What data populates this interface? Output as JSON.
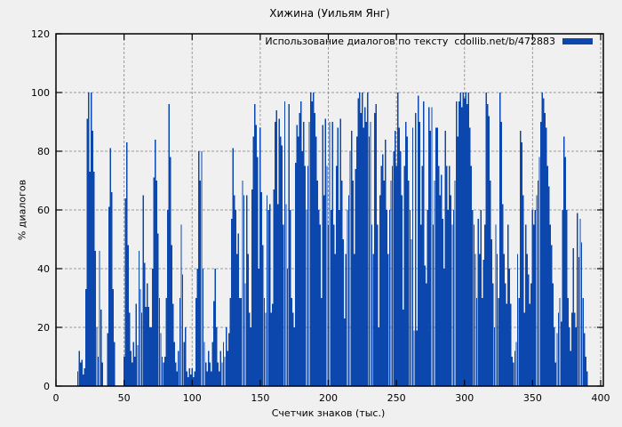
{
  "title": "Хижина (Уильям Янг)",
  "axes": {
    "y_label": "% диалогов",
    "x_label": "Счетчик знаков (тыс.)"
  },
  "legend": {
    "label": "Использование диалогов по тексту  coollib.net/b/472883",
    "swatch_color": "#0b47ad"
  },
  "colors": {
    "background": "#f0f0f0",
    "bar": "#0b47ad",
    "grid": "#9a9a9a",
    "border": "#000000",
    "text": "#000000"
  },
  "chart_data": {
    "type": "bar",
    "title": "Хижина (Уильям Янг)",
    "xlabel": "Счетчик знаков (тыс.)",
    "ylabel": "% диалогов",
    "xlim": [
      0,
      402
    ],
    "ylim": [
      0,
      120
    ],
    "x_ticks": [
      0,
      50,
      100,
      150,
      200,
      250,
      300,
      350,
      400
    ],
    "y_ticks": [
      0,
      20,
      40,
      60,
      80,
      100,
      120
    ],
    "grid": true,
    "legend_position": "top-right-inside",
    "series": [
      {
        "name": "Использование диалогов по тексту  coollib.net/b/472883",
        "x_start": 16,
        "x_step": 1,
        "values": [
          5,
          12,
          8,
          9,
          4,
          6,
          33,
          91,
          100,
          73,
          100,
          87,
          73,
          46,
          20,
          10,
          46,
          26,
          8,
          0,
          0,
          0,
          18,
          61,
          81,
          66,
          33,
          15,
          0,
          0,
          0,
          0,
          0,
          0,
          10,
          64,
          83,
          48,
          25,
          12,
          8,
          15,
          10,
          28,
          14,
          46,
          33,
          25,
          65,
          42,
          27,
          35,
          27,
          20,
          20,
          40,
          71,
          84,
          70,
          52,
          30,
          18,
          10,
          8,
          10,
          30,
          60,
          96,
          78,
          48,
          28,
          15,
          8,
          5,
          12,
          30,
          55,
          38,
          15,
          20,
          5,
          3,
          6,
          4,
          6,
          3,
          5,
          30,
          40,
          80,
          70,
          80,
          40,
          15,
          8,
          5,
          12,
          8,
          5,
          15,
          29,
          40,
          20,
          8,
          5,
          12,
          8,
          15,
          10,
          20,
          12,
          18,
          30,
          57,
          81,
          65,
          60,
          45,
          52,
          30,
          30,
          70,
          65,
          35,
          65,
          45,
          25,
          20,
          67,
          85,
          96,
          89,
          78,
          40,
          88,
          66,
          48,
          30,
          25,
          65,
          60,
          62,
          25,
          28,
          67,
          90,
          94,
          62,
          91,
          85,
          82,
          55,
          97,
          62,
          40,
          96,
          60,
          30,
          25,
          20,
          76,
          89,
          85,
          93,
          97,
          80,
          90,
          75,
          60,
          75,
          90,
          100,
          97,
          100,
          93,
          85,
          70,
          60,
          55,
          30,
          89,
          65,
          91,
          75,
          55,
          90,
          60,
          90,
          55,
          45,
          75,
          88,
          60,
          91,
          70,
          50,
          23,
          45,
          60,
          65,
          80,
          87,
          70,
          45,
          74,
          85,
          98,
          100,
          93,
          100,
          88,
          95,
          90,
          100,
          85,
          90,
          55,
          45,
          93,
          96,
          55,
          20,
          65,
          75,
          79,
          70,
          84,
          60,
          45,
          60,
          70,
          75,
          80,
          87,
          75,
          100,
          88,
          80,
          65,
          26,
          75,
          90,
          85,
          70,
          60,
          50,
          88,
          19,
          93,
          19,
          99,
          90,
          55,
          75,
          97,
          41,
          35,
          60,
          95,
          87,
          95,
          55,
          70,
          88,
          88,
          75,
          65,
          72,
          57,
          40,
          87,
          75,
          60,
          75,
          65,
          55,
          60,
          70,
          97,
          85,
          97,
          100,
          95,
          100,
          98,
          100,
          96,
          100,
          88,
          75,
          60,
          55,
          45,
          30,
          57,
          45,
          60,
          30,
          43,
          55,
          100,
          96,
          92,
          70,
          50,
          35,
          20,
          55,
          45,
          30,
          100,
          90,
          62,
          45,
          35,
          28,
          55,
          40,
          28,
          10,
          8,
          12,
          15,
          45,
          30,
          87,
          83,
          65,
          25,
          55,
          45,
          38,
          28,
          35,
          60,
          55,
          60,
          65,
          70,
          78,
          90,
          100,
          98,
          93,
          88,
          75,
          68,
          55,
          48,
          35,
          20,
          8,
          18,
          25,
          30,
          22,
          60,
          85,
          78,
          60,
          30,
          20,
          12,
          25,
          47,
          25,
          20,
          59,
          44,
          57,
          49,
          30,
          18,
          10,
          5
        ]
      }
    ]
  },
  "plot_geometry_note": "y gridlines at 20-100, x gridlines at 50-400, dashed gray; bars are 1px impulses"
}
